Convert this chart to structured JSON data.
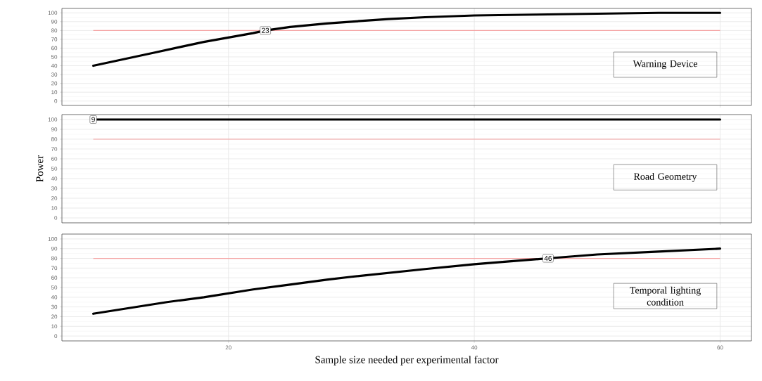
{
  "chart_data": [
    {
      "type": "line",
      "title": "Warning Device",
      "x": [
        9,
        10,
        12,
        14,
        16,
        18,
        20,
        22,
        23,
        25,
        28,
        30,
        33,
        36,
        40,
        45,
        50,
        55,
        60
      ],
      "series": [
        {
          "color": "#000000",
          "values": [
            40,
            43,
            49,
            55,
            61,
            67,
            72,
            77,
            80,
            84,
            88,
            90,
            93,
            95,
            97,
            98,
            99,
            100,
            100
          ]
        }
      ],
      "xlim": [
        6.45,
        62.55
      ],
      "ylim": [
        -5,
        105
      ],
      "xticks": [
        20,
        40,
        60
      ],
      "yticks": [
        0,
        10,
        20,
        30,
        40,
        50,
        60,
        70,
        80,
        90,
        100
      ],
      "grid": true,
      "tick_labels": "y",
      "marker": "none",
      "line_style": "solid",
      "ref_lines": [
        {
          "axis": "y",
          "value": 80,
          "color": "#f4a3a3"
        }
      ],
      "annotations": [
        {
          "text": "23",
          "x": 23,
          "y": 80
        }
      ]
    },
    {
      "type": "line",
      "title": "Road Geometry",
      "ylabel": "Power",
      "x": [
        9,
        20,
        30,
        40,
        50,
        60
      ],
      "series": [
        {
          "color": "#000000",
          "values": [
            100,
            100,
            100,
            100,
            100,
            100
          ]
        }
      ],
      "xlim": [
        6.45,
        62.55
      ],
      "ylim": [
        -5,
        105
      ],
      "xticks": [
        20,
        40,
        60
      ],
      "yticks": [
        0,
        10,
        20,
        30,
        40,
        50,
        60,
        70,
        80,
        90,
        100
      ],
      "grid": true,
      "tick_labels": "y",
      "marker": "none",
      "line_style": "solid",
      "ref_lines": [
        {
          "axis": "y",
          "value": 80,
          "color": "#f4a3a3"
        }
      ],
      "annotations": [
        {
          "text": "9",
          "x": 9,
          "y": 100
        }
      ]
    },
    {
      "type": "line",
      "title": "Temporal lighting condition",
      "xlabel": "Sample size needed per experimental factor",
      "x": [
        9,
        12,
        15,
        18,
        20,
        22,
        25,
        28,
        30,
        33,
        36,
        40,
        43,
        46,
        50,
        55,
        60
      ],
      "series": [
        {
          "color": "#000000",
          "values": [
            23,
            29,
            35,
            40,
            44,
            48,
            53,
            58,
            61,
            65,
            69,
            74,
            77,
            80,
            84,
            87,
            90
          ]
        }
      ],
      "xlim": [
        6.45,
        62.55
      ],
      "ylim": [
        -5,
        105
      ],
      "xticks": [
        20,
        40,
        60
      ],
      "yticks": [
        0,
        10,
        20,
        30,
        40,
        50,
        60,
        70,
        80,
        90,
        100
      ],
      "grid": true,
      "marker": "none",
      "line_style": "solid",
      "ref_lines": [
        {
          "axis": "y",
          "value": 80,
          "color": "#f4a3a3"
        }
      ],
      "annotations": [
        {
          "text": "46",
          "x": 46,
          "y": 80
        }
      ]
    }
  ]
}
